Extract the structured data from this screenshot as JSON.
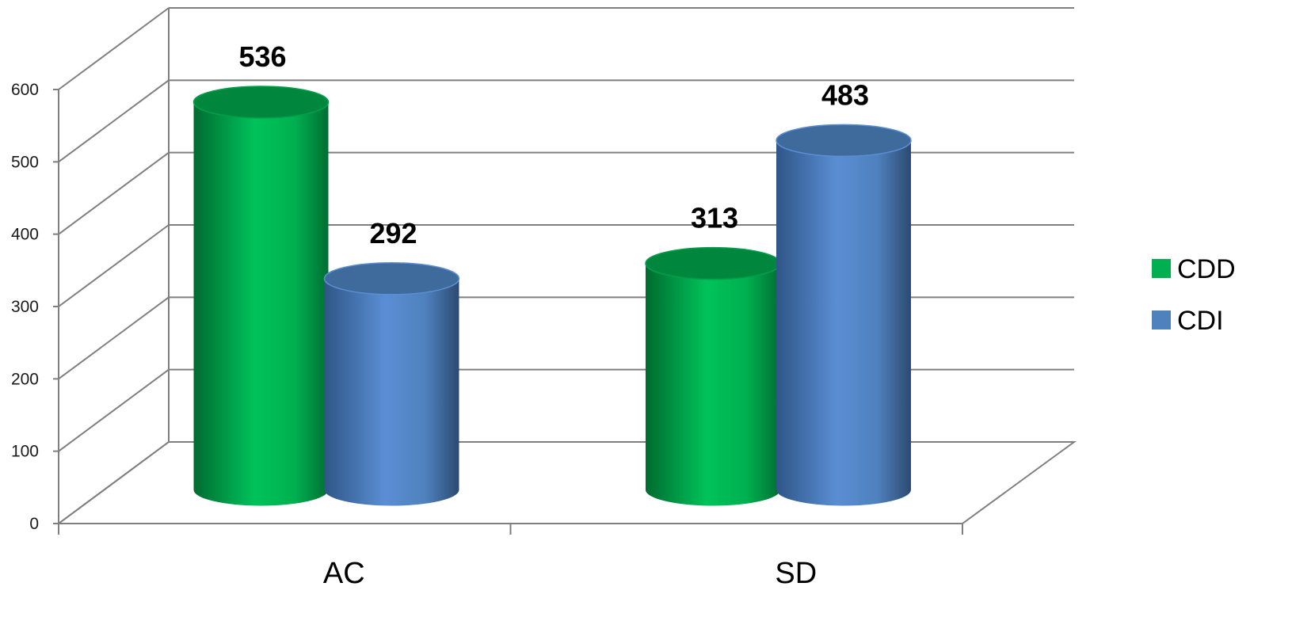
{
  "chart_data": {
    "type": "bar",
    "style": "3d-cylinder",
    "categories": [
      "AC",
      "SD"
    ],
    "series": [
      {
        "name": "CDD",
        "values": [
          536,
          313
        ],
        "color": "#00b050"
      },
      {
        "name": "CDI",
        "values": [
          292,
          483
        ],
        "color": "#4f81bd"
      }
    ],
    "yticks": [
      0,
      100,
      200,
      300,
      400,
      500,
      600
    ],
    "ylim": [
      0,
      600
    ],
    "grid": true,
    "legend_position": "right"
  }
}
